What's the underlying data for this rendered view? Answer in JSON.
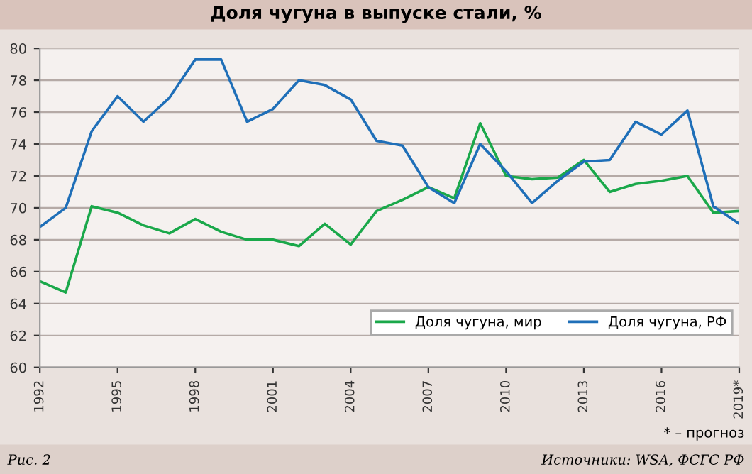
{
  "chart_data": {
    "type": "line",
    "title": "Доля чугуна в выпуске стали, %",
    "x": [
      1992,
      1993,
      1994,
      1995,
      1996,
      1997,
      1998,
      1999,
      2000,
      2001,
      2002,
      2003,
      2004,
      2005,
      2006,
      2007,
      2008,
      2009,
      2010,
      2011,
      2012,
      2013,
      2014,
      2015,
      2016,
      2017,
      2018,
      2019
    ],
    "series": [
      {
        "name": "Доля чугуна, мир",
        "color": "#1aa84a",
        "values": [
          65.4,
          64.7,
          70.1,
          69.7,
          68.9,
          68.4,
          69.3,
          68.5,
          68.0,
          68.0,
          67.6,
          69.0,
          67.7,
          69.8,
          70.5,
          71.3,
          70.6,
          75.3,
          72.0,
          71.8,
          71.9,
          73.0,
          71.0,
          71.5,
          71.7,
          72.0,
          69.7,
          69.8
        ]
      },
      {
        "name": "Доля чугуна, РФ",
        "color": "#1f6fb8",
        "values": [
          68.8,
          70.0,
          74.8,
          77.0,
          75.4,
          76.9,
          79.3,
          79.3,
          75.4,
          76.2,
          78.0,
          77.7,
          76.8,
          74.2,
          73.9,
          71.3,
          70.3,
          74.0,
          72.3,
          70.3,
          71.7,
          72.9,
          73.0,
          75.4,
          74.6,
          76.1,
          70.1,
          69.0
        ]
      }
    ],
    "xlim": [
      1992,
      2019
    ],
    "xticks": [
      1992,
      1995,
      1998,
      2001,
      2004,
      2007,
      2010,
      2013,
      2016,
      {
        "value": 2019,
        "label": "2019*"
      }
    ],
    "ylim": [
      60,
      80
    ],
    "yticks": [
      60,
      62,
      64,
      66,
      68,
      70,
      72,
      74,
      76,
      78,
      80
    ],
    "grid": "y",
    "legend": "bottom right",
    "marker": "none",
    "line_style": "solid",
    "annotations": [
      "* – прогноз",
      "Рис. 2",
      "Источники: WSA, ФСГС РФ"
    ]
  }
}
